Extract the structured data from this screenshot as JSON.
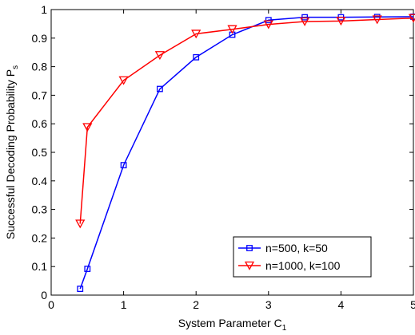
{
  "chart_data": {
    "type": "line",
    "xlabel": {
      "text": "System Parameter C",
      "subscript": "1"
    },
    "ylabel": {
      "text": "Successful Decoding Probability P",
      "subscript": "s"
    },
    "xlim": [
      0,
      5
    ],
    "ylim": [
      0,
      1
    ],
    "xticks": [
      "0",
      "1",
      "2",
      "3",
      "4",
      "5"
    ],
    "yticks": [
      "0",
      "0.1",
      "0.2",
      "0.3",
      "0.4",
      "0.5",
      "0.6",
      "0.7",
      "0.8",
      "0.9",
      "1"
    ],
    "grid": false,
    "legend_position": "bottom-right",
    "series": [
      {
        "name": "n=500, k=50",
        "color": "#0000ff",
        "marker": "square",
        "x": [
          0.4,
          0.5,
          1.0,
          1.5,
          2.0,
          2.5,
          3.0,
          3.5,
          4.0,
          4.5,
          5.0
        ],
        "y": [
          0.022,
          0.092,
          0.455,
          0.722,
          0.833,
          0.912,
          0.963,
          0.973,
          0.973,
          0.974,
          0.975
        ]
      },
      {
        "name": "n=1000, k=100",
        "color": "#ff0000",
        "marker": "triangle-down",
        "x": [
          0.4,
          0.5,
          1.0,
          1.5,
          2.0,
          2.5,
          3.0,
          3.5,
          4.0,
          4.5,
          5.0
        ],
        "y": [
          0.25,
          0.588,
          0.752,
          0.84,
          0.915,
          0.931,
          0.948,
          0.958,
          0.96,
          0.965,
          0.97
        ]
      }
    ]
  }
}
